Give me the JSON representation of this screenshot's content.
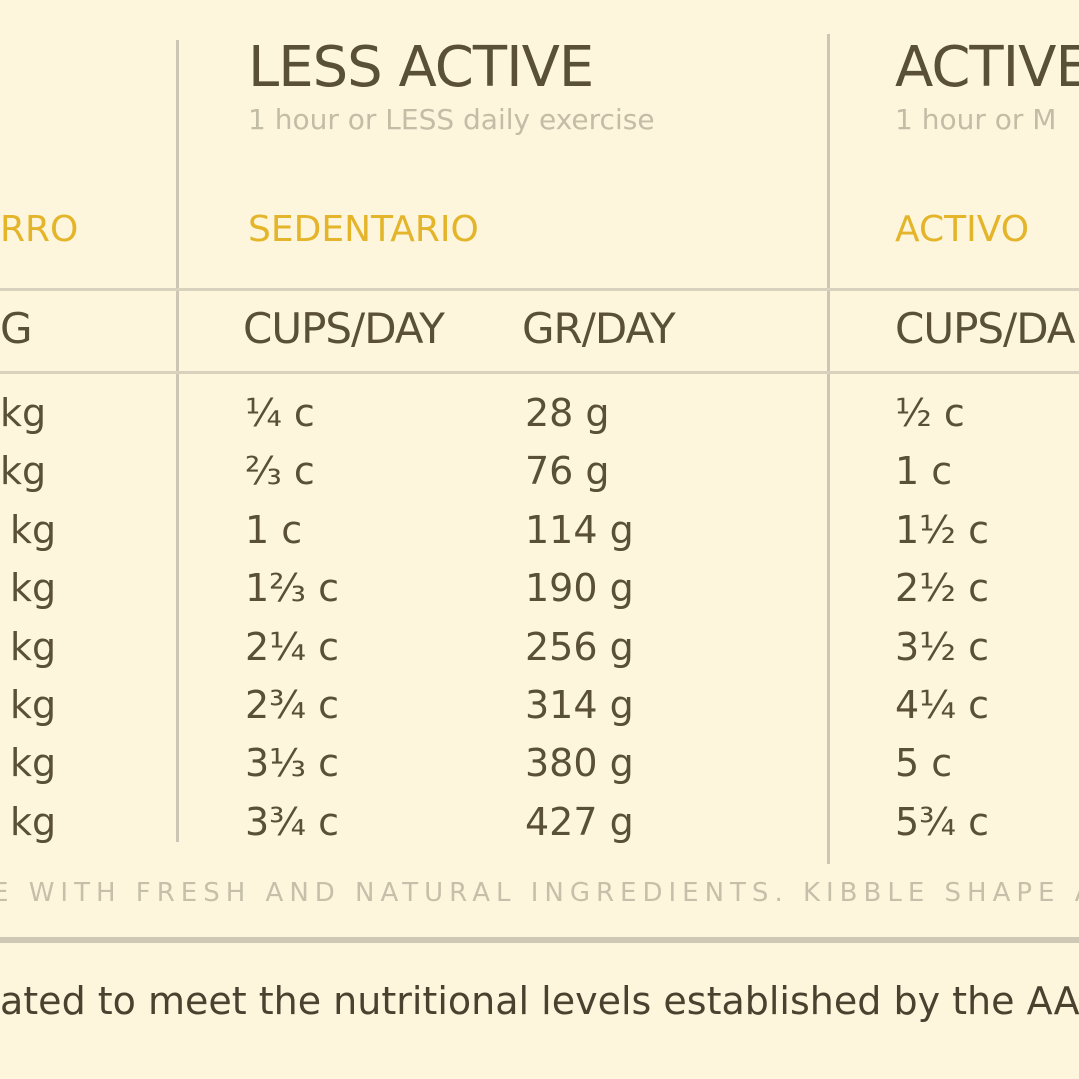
{
  "header": {
    "columns": [
      {
        "title": null,
        "subtitle": null,
        "spanish": "RRO",
        "units": [
          "G"
        ]
      },
      {
        "title": "LESS ACTIVE",
        "subtitle": "1 hour or LESS daily exercise",
        "spanish": "SEDENTARIO",
        "units": [
          "CUPS/DAY",
          "GR/DAY"
        ]
      },
      {
        "title": "ACTIVE",
        "subtitle": "1 hour or M",
        "spanish": "ACTIVO",
        "units": [
          "CUPS/DA"
        ]
      }
    ]
  },
  "table": {
    "rows": [
      [
        "kg",
        "¼ c",
        "28 g",
        "½ c"
      ],
      [
        "kg",
        "⅔ c",
        "76 g",
        "1 c"
      ],
      [
        "kg",
        "1 c",
        "114 g",
        "1½ c"
      ],
      [
        "kg",
        "1⅔ c",
        "190 g",
        "2½ c"
      ],
      [
        "kg",
        "2¼ c",
        "256 g",
        "3½ c"
      ],
      [
        "kg",
        "2¾ c",
        "314 g",
        "4¼ c"
      ],
      [
        "kg",
        "3⅓ c",
        "380 g",
        "5 c"
      ],
      [
        "kg",
        "3¾ c",
        "427 g",
        "5¾ c"
      ]
    ]
  },
  "footer": {
    "tagline": "E WITH FRESH AND NATURAL INGREDIENTS. KIBBLE SHAPE AI",
    "statement": "ated to meet the nutritional levels established by the AA"
  }
}
